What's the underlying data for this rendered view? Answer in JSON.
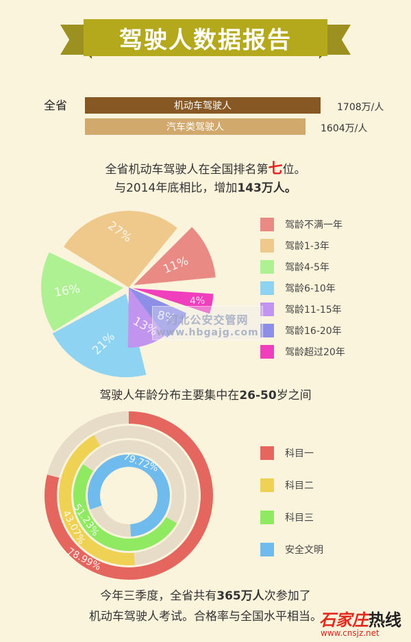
{
  "title": "驾驶人数据报告",
  "bars": {
    "region_label": "全省",
    "items": [
      {
        "label": "机动车驾驶人",
        "value": "1708万/人",
        "color": "#875824"
      },
      {
        "label": "汽车类驾驶人",
        "value": "1604万/人",
        "color": "#d2a96c"
      }
    ]
  },
  "rank_text": {
    "part1": "全省机动车驾驶人在全国排名第",
    "rank": "七",
    "part2": "位。",
    "line2_a": "与2014年底相比，增加",
    "line2_b": "143万人。"
  },
  "age_text": {
    "a": "驾驶人年龄分布主要集中在",
    "b": "26-50",
    "c": "岁之间"
  },
  "exam_text": {
    "line1_a": "今年三季度，全省共有",
    "line1_b": "365万人",
    "line1_c": "次参加了",
    "line2": "机动车驾驶人考试。合格率与全国水平相当。"
  },
  "watermark": {
    "line1": "河北公安交管网",
    "line2": "www.hbgajg.com"
  },
  "corner_logo": {
    "name_a": "石家庄",
    "name_b": "热线",
    "url": "www.cnsjz.net"
  },
  "chart_data": [
    {
      "type": "pie",
      "title": "",
      "legend_position": "right",
      "slices": [
        {
          "name": "驾龄不满一年",
          "value": 11,
          "label": "11%",
          "color": "#e98a84"
        },
        {
          "name": "驾龄1-3年",
          "value": 27,
          "label": "27%",
          "color": "#eec98b"
        },
        {
          "name": "驾龄4-5年",
          "value": 16,
          "label": "16%",
          "color": "#aef192"
        },
        {
          "name": "驾龄6-10年",
          "value": 21,
          "label": "21%",
          "color": "#8fd3f2"
        },
        {
          "name": "驾龄11-15年",
          "value": 13,
          "label": "13%",
          "color": "#c195ef"
        },
        {
          "name": "驾龄16-20年",
          "value": 8,
          "label": "8%",
          "color": "#8c8ee7"
        },
        {
          "name": "驾龄超过20年",
          "value": 4,
          "label": "4%",
          "color": "#ef3fbd"
        }
      ]
    },
    {
      "type": "pie",
      "subtype": "concentric-rings",
      "title": "",
      "legend_position": "right",
      "series": [
        {
          "name": "科目一",
          "value": 78.99,
          "label": "78.99%",
          "color": "#e5655f"
        },
        {
          "name": "科目二",
          "value": 43.07,
          "label": "43.07%",
          "color": "#efd154"
        },
        {
          "name": "科目三",
          "value": 51.23,
          "label": "51.23%",
          "color": "#8fe961"
        },
        {
          "name": "安全文明",
          "value": 79.72,
          "label": "79.72%",
          "color": "#6fbbed"
        }
      ],
      "track_color": "#e6dcc8"
    }
  ]
}
